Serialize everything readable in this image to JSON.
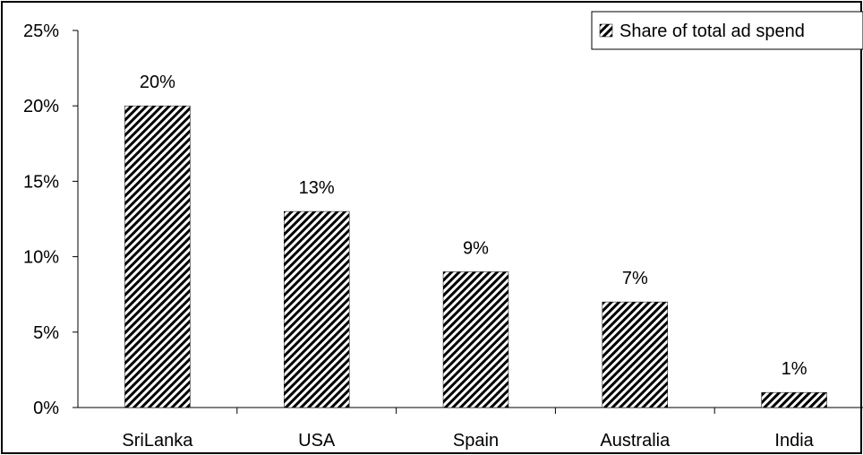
{
  "chart_data": {
    "type": "bar",
    "categories": [
      "SriLanka",
      "USA",
      "Spain",
      "Australia",
      "India"
    ],
    "series": [
      {
        "name": "Share of total ad spend",
        "values": [
          20,
          13,
          9,
          7,
          1
        ],
        "labels": [
          "20%",
          "13%",
          "9%",
          "7%",
          "1%"
        ]
      }
    ],
    "yticks": [
      0,
      5,
      10,
      15,
      20,
      25
    ],
    "ytick_labels": [
      "0%",
      "5%",
      "10%",
      "15%",
      "20%",
      "25%"
    ],
    "ylim": [
      0,
      25
    ],
    "y_unit": "%",
    "title": "",
    "xlabel": "",
    "ylabel": "",
    "legend_position": "top-right",
    "bar_pattern": "diagonal-stripes",
    "colors": {
      "bar_stripe": "#000000",
      "bar_background": "#ffffff",
      "axis": "#000000"
    }
  }
}
